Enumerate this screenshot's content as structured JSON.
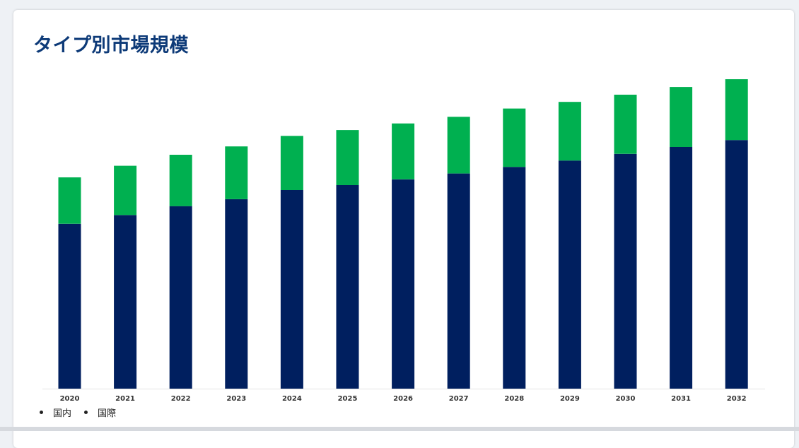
{
  "card": {
    "title": "タイプ別市場規模"
  },
  "chart_data": {
    "type": "bar",
    "stacked": true,
    "categories": [
      "2020",
      "2021",
      "2022",
      "2023",
      "2024",
      "2025",
      "2026",
      "2027",
      "2028",
      "2029",
      "2030",
      "2031",
      "2032"
    ],
    "series": [
      {
        "name": "国内",
        "color": "#001f5f",
        "values": [
          59.6,
          62.8,
          66.0,
          68.5,
          71.8,
          73.6,
          75.7,
          77.8,
          80.2,
          82.5,
          84.9,
          87.4,
          89.9
        ]
      },
      {
        "name": "国際",
        "color": "#00b050",
        "values": [
          16.8,
          17.8,
          18.6,
          19.1,
          19.6,
          19.9,
          20.2,
          20.5,
          21.1,
          21.2,
          21.4,
          21.7,
          22.0
        ]
      }
    ],
    "ylim": [
      0,
      115
    ],
    "grid": false,
    "legend_position": "bottom-left",
    "axis_color": "#e3e3e3"
  }
}
